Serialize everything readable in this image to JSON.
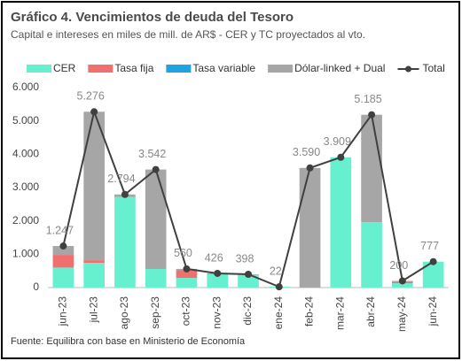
{
  "chart_data": {
    "type": "stacked-bar-line",
    "title": "Gráfico 4. Vencimientos de deuda del Tesoro",
    "subtitle": "Capital e intereses en miles de mill. de AR$ - CER y TC proyectados al vto.",
    "source": "Fuente: Equilibra con base en Ministerio de Economía",
    "categories": [
      "jun-23",
      "jul-23",
      "ago-23",
      "sep-23",
      "oct-23",
      "nov-23",
      "dic-23",
      "ene-24",
      "feb-24",
      "mar-24",
      "abr-24",
      "may-24",
      "jun-24"
    ],
    "series": [
      {
        "name": "CER",
        "color": "#66f0cf",
        "values": [
          600,
          740,
          2720,
          557,
          290,
          400,
          380,
          22,
          0,
          3909,
          1960,
          130,
          777
        ]
      },
      {
        "name": "Tasa fija",
        "color": "#f07070",
        "values": [
          380,
          80,
          0,
          0,
          230,
          0,
          0,
          0,
          0,
          0,
          0,
          40,
          0
        ]
      },
      {
        "name": "Tasa variable",
        "color": "#1ea5e0",
        "values": [
          0,
          0,
          0,
          0,
          0,
          0,
          0,
          0,
          0,
          0,
          0,
          0,
          0
        ]
      },
      {
        "name": "Dólar-linked + Dual",
        "color": "#a6a6a6",
        "values": [
          267,
          4456,
          74,
          2985,
          40,
          26,
          18,
          0,
          3590,
          0,
          3225,
          30,
          0
        ]
      }
    ],
    "total": {
      "name": "Total",
      "color": "#404040",
      "values": [
        1247,
        5276,
        2794,
        3542,
        560,
        426,
        398,
        22,
        3590,
        3909,
        5185,
        200,
        777
      ],
      "value_labels": [
        "1.247",
        "5.276",
        "2.794",
        "3.542",
        "560",
        "426",
        "398",
        "22",
        "3.590",
        "3.909",
        "5.185",
        "200",
        "777"
      ]
    },
    "ylim": [
      0,
      6000
    ],
    "yticks": [
      0,
      {
        "value": 1000,
        "label": "1.000"
      },
      {
        "value": 2000,
        "label": "2.000"
      },
      {
        "value": 3000,
        "label": "3.000"
      },
      {
        "value": 4000,
        "label": "4.000"
      },
      {
        "value": 5000,
        "label": "5.000"
      },
      {
        "value": 6000,
        "label": "6.000"
      }
    ]
  }
}
